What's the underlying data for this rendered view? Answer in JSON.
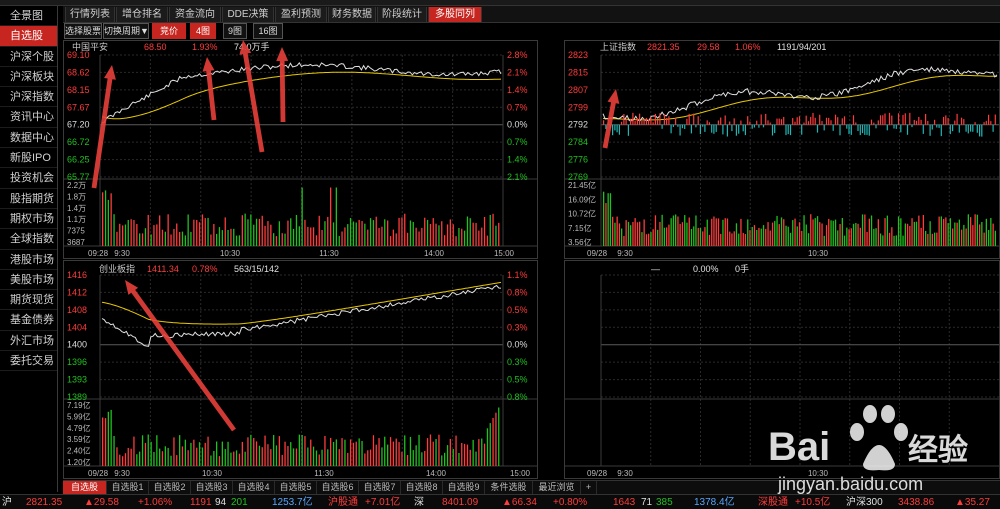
{
  "tabs": [
    "行情列表",
    "增仓排名",
    "资金流向",
    "DDE决策",
    "盈利预测",
    "财务数据",
    "阶段统计",
    "多股同列"
  ],
  "active_tab": 7,
  "sidebar": [
    "全景图",
    "自选股",
    "沪深个股",
    "沪深板块",
    "沪深指数",
    "资讯中心",
    "数据中心",
    "新股IPO",
    "投资机会",
    "股指期货",
    "期权市场",
    "全球指数",
    "港股市场",
    "美股市场",
    "期货现货",
    "基金债券",
    "外汇市场",
    "委托交易"
  ],
  "sidebar_active": 1,
  "toolbar": {
    "select_stock": "选择股票",
    "switch_period": "切换周期▼",
    "price": "竞价",
    "grid4": "4图",
    "grid9": "9图",
    "grid16": "16图"
  },
  "panels": {
    "tl": {
      "name": "中国平安",
      "price": "68.50",
      "pct": "1.93%",
      "vol": "74.0万手",
      "left_axis": [
        "69.10",
        "68.62",
        "68.15",
        "67.67",
        "67.20",
        "66.72",
        "66.25",
        "65.77"
      ],
      "right_axis": [
        "2.8%",
        "2.1%",
        "1.4%",
        "0.7%",
        "0.0%",
        "0.7%",
        "1.4%",
        "2.1%"
      ],
      "vol_axis": [
        "2.2万",
        "1.8万",
        "1.4万",
        "1.1万",
        "7375",
        "3687"
      ],
      "time_labels": [
        "09:28",
        "9:30",
        "10:30",
        "11:30",
        "14:00",
        "15:00"
      ]
    },
    "tr": {
      "name": "上证指数",
      "price": "2821.35",
      "chg": "29.58",
      "pct": "1.06%",
      "ud": "1191/94/201",
      "left_axis": [
        "2823",
        "2815",
        "2807",
        "2799",
        "2792",
        "2784",
        "2776",
        "2769"
      ],
      "vol_axis": [
        "21.45亿",
        "16.09亿",
        "10.72亿",
        "7.15亿",
        "3.56亿"
      ],
      "time_labels": [
        "09/28",
        "9:30",
        "10:30"
      ]
    },
    "bl": {
      "name": "创业板指",
      "price": "1411.34",
      "pct": "0.78%",
      "ud": "563/15/142",
      "left_axis": [
        "1416",
        "1412",
        "1408",
        "1404",
        "1400",
        "1396",
        "1393",
        "1389"
      ],
      "right_axis": [
        "1.1%",
        "0.8%",
        "0.5%",
        "0.3%",
        "0.0%",
        "0.3%",
        "0.5%",
        "0.8%"
      ],
      "vol_axis": [
        "7.19亿",
        "5.99亿",
        "4.79亿",
        "3.59亿",
        "2.40亿",
        "1.20亿"
      ],
      "time_labels": [
        "09/28",
        "9:30",
        "10:30",
        "11:30",
        "14:00",
        "15:00"
      ]
    },
    "br": {
      "name": "—",
      "pct": "0.00%",
      "vol": "0手",
      "time_labels": [
        "09/28",
        "9:30",
        "10:30"
      ]
    }
  },
  "bottom_tabs": [
    "自选股",
    "自选股1",
    "自选股2",
    "自选股3",
    "自选股4",
    "自选股5",
    "自选股6",
    "自选股7",
    "自选股8",
    "自选股9",
    "条件选股",
    "最近浏览",
    "+"
  ],
  "status": {
    "sh_label": "沪",
    "sh_price": "2821.35",
    "sh_chg": "▲29.58",
    "sh_pct": "+1.06%",
    "sh_ud_up": "1191",
    "sh_ud_flat": "94",
    "sh_ud_down": "201",
    "sh_amt": "1253.7亿",
    "hgt_label": "沪股通",
    "hgt_val": "+7.01亿",
    "sz_label": "深",
    "sz_price": "8401.09",
    "sz_chg": "▲66.34",
    "sz_pct": "+0.80%",
    "sz_ud_up": "1643",
    "sz_ud_flat": "71",
    "sz_ud_down": "385",
    "sz_amt": "1378.4亿",
    "sgt_label": "深股通",
    "sgt_val": "+10.5亿",
    "hs300_label": "沪深300",
    "hs300_price": "3438.86",
    "hs300_chg": "▲35.27"
  },
  "watermark": {
    "brand": "Bai",
    "brand2": "经验",
    "url": "jingyan.baidu.com"
  },
  "colors": {
    "accent": "#c6261f",
    "up": "#ff3b3b",
    "down": "#20c020",
    "avg_line": "#e8c800",
    "price_line": "#e0e0e0",
    "annotation_arrow": "#e8403a"
  }
}
